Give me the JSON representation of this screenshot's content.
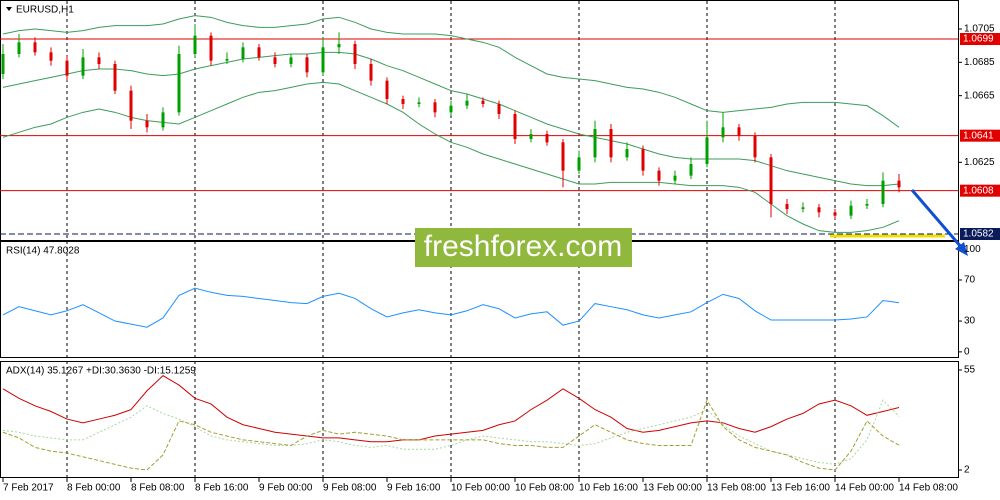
{
  "chart_data": [
    {
      "type": "candlestick",
      "title": "EURUSD,H1",
      "watermark": "freshforex.com",
      "categories": [
        "7 Feb 2017",
        null,
        null,
        null,
        "8 Feb 00:00",
        null,
        null,
        null,
        "8 Feb 08:00",
        null,
        null,
        null,
        "8 Feb 16:00",
        null,
        null,
        null,
        "9 Feb 00:00",
        null,
        null,
        null,
        "9 Feb 08:00",
        null,
        null,
        null,
        "9 Feb 16:00",
        null,
        null,
        null,
        "10 Feb 00:00",
        null,
        null,
        null,
        "10 Feb 08:00",
        null,
        null,
        null,
        "10 Feb 16:00",
        null,
        null,
        null,
        "13 Feb 00:00",
        null,
        null,
        null,
        "13 Feb 08:00",
        null,
        null,
        null,
        "13 Feb 16:00",
        null,
        null,
        null,
        "14 Feb 00:00",
        null,
        null,
        null,
        "14 Feb 08:00"
      ],
      "open": [
        1.0678,
        1.069,
        1.0697,
        1.0691,
        1.0686,
        1.0677,
        1.0688,
        1.0684,
        1.0668,
        1.065,
        1.0646,
        1.0655,
        1.069,
        1.0701,
        1.0686,
        1.0687,
        1.0694,
        1.0688,
        1.0684,
        1.0688,
        1.0679,
        1.0694,
        1.0696,
        1.0684,
        1.0674,
        1.0663,
        1.066,
        1.0661,
        1.0655,
        1.0659,
        1.0662,
        1.066,
        1.0654,
        1.0639,
        1.0642,
        1.0637,
        1.062,
        1.0628,
        1.0645,
        1.0628,
        1.0633,
        1.062,
        1.0614,
        1.0617,
        1.0624,
        1.064,
        1.0646,
        1.0641,
        1.0628,
        1.06,
        1.0597,
        1.0598,
        1.0595,
        1.0593,
        1.0599,
        1.06,
        1.0614
      ],
      "high": [
        1.0696,
        1.0702,
        1.07,
        1.0694,
        1.0689,
        1.0693,
        1.0691,
        1.0686,
        1.0671,
        1.0654,
        1.0658,
        1.0695,
        1.0708,
        1.0703,
        1.0691,
        1.0697,
        1.0696,
        1.0691,
        1.069,
        1.069,
        1.07,
        1.0703,
        1.0698,
        1.0687,
        1.0676,
        1.0665,
        1.0664,
        1.0663,
        1.0662,
        1.0666,
        1.0664,
        1.0662,
        1.0656,
        1.0645,
        1.0644,
        1.0639,
        1.0632,
        1.065,
        1.0648,
        1.0637,
        1.0635,
        1.0622,
        1.062,
        1.0628,
        1.065,
        1.0655,
        1.0648,
        1.0643,
        1.063,
        1.0603,
        1.0601,
        1.06,
        1.0597,
        1.0602,
        1.0603,
        1.0619,
        1.0618
      ],
      "low": [
        1.0675,
        1.0688,
        1.0689,
        1.0683,
        1.0674,
        1.0675,
        1.0681,
        1.0666,
        1.0645,
        1.0643,
        1.0644,
        1.0653,
        1.0688,
        1.0683,
        1.0684,
        1.0685,
        1.0686,
        1.0682,
        1.0682,
        1.0676,
        1.0677,
        1.069,
        1.0681,
        1.0671,
        1.066,
        1.0657,
        1.0658,
        1.0652,
        1.0653,
        1.0657,
        1.0658,
        1.0651,
        1.0636,
        1.0637,
        1.0635,
        1.061,
        1.0618,
        1.0625,
        1.0625,
        1.0626,
        1.0617,
        1.0611,
        1.0612,
        1.0615,
        1.0622,
        1.0637,
        1.0638,
        1.0625,
        1.0592,
        1.0594,
        1.0595,
        1.0592,
        1.0591,
        1.0591,
        1.0597,
        1.0598,
        1.0607
      ],
      "close": [
        1.069,
        1.0697,
        1.0691,
        1.0686,
        1.0677,
        1.0688,
        1.0684,
        1.0668,
        1.065,
        1.0646,
        1.0655,
        1.069,
        1.0701,
        1.0686,
        1.0687,
        1.0694,
        1.0688,
        1.0684,
        1.0688,
        1.0679,
        1.0694,
        1.0696,
        1.0684,
        1.0674,
        1.0663,
        1.066,
        1.0661,
        1.0655,
        1.0659,
        1.0662,
        1.066,
        1.0654,
        1.0639,
        1.0642,
        1.0637,
        1.062,
        1.0628,
        1.0645,
        1.0628,
        1.0633,
        1.062,
        1.0614,
        1.0617,
        1.0624,
        1.064,
        1.0646,
        1.0641,
        1.0628,
        1.06,
        1.0597,
        1.0598,
        1.0595,
        1.0593,
        1.0599,
        1.06,
        1.0614,
        1.061
      ],
      "up_color": "#00a000",
      "down_color": "#e00000",
      "series": [
        {
          "color": "#3c9c5c",
          "values": [
            1.0702,
            1.0704,
            1.0705,
            1.0704,
            1.0703,
            1.0704,
            1.0706,
            1.0707,
            1.0707,
            1.0707,
            1.0708,
            1.0711,
            1.0713,
            1.0712,
            1.0709,
            1.0707,
            1.0706,
            1.0706,
            1.0707,
            1.0708,
            1.0711,
            1.0712,
            1.0709,
            1.0705,
            1.0703,
            1.0702,
            1.0702,
            1.0702,
            1.0701,
            1.0699,
            1.0697,
            1.0694,
            1.0688,
            1.0683,
            1.0678,
            1.0676,
            1.0675,
            1.0674,
            1.0672,
            1.067,
            1.0669,
            1.0667,
            1.0664,
            1.066,
            1.0656,
            1.0655,
            1.0656,
            1.0657,
            1.0658,
            1.066,
            1.0661,
            1.0661,
            1.0661,
            1.066,
            1.0659,
            1.0653,
            1.0646
          ]
        },
        {
          "color": "#3c9c5c",
          "values": [
            1.067,
            1.0672,
            1.0674,
            1.0676,
            1.0678,
            1.068,
            1.0681,
            1.0681,
            1.068,
            1.0678,
            1.0677,
            1.0678,
            1.0681,
            1.0683,
            1.0685,
            1.0687,
            1.0688,
            1.0689,
            1.069,
            1.069,
            1.0691,
            1.0691,
            1.069,
            1.0687,
            1.0683,
            1.068,
            1.0676,
            1.0672,
            1.0668,
            1.0666,
            1.0663,
            1.066,
            1.0656,
            1.0652,
            1.0648,
            1.0645,
            1.0642,
            1.064,
            1.0638,
            1.0636,
            1.0633,
            1.063,
            1.0628,
            1.0627,
            1.0627,
            1.0627,
            1.0627,
            1.0626,
            1.0623,
            1.062,
            1.0618,
            1.0616,
            1.0614,
            1.0612,
            1.0611,
            1.0611,
            1.0612
          ]
        },
        {
          "color": "#3c9c5c",
          "values": [
            1.064,
            1.0643,
            1.0646,
            1.0648,
            1.0652,
            1.0655,
            1.0657,
            1.0655,
            1.0652,
            1.065,
            1.0649,
            1.0648,
            1.0652,
            1.0656,
            1.066,
            1.0664,
            1.0667,
            1.0668,
            1.067,
            1.0672,
            1.0673,
            1.0672,
            1.0668,
            1.0664,
            1.066,
            1.0655,
            1.0648,
            1.0642,
            1.0637,
            1.0634,
            1.063,
            1.0627,
            1.0624,
            1.0621,
            1.0618,
            1.0615,
            1.0612,
            1.0612,
            1.0613,
            1.0613,
            1.0613,
            1.0613,
            1.0612,
            1.0611,
            1.0611,
            1.0611,
            1.061,
            1.0607,
            1.06,
            1.0593,
            1.0588,
            1.0584,
            1.0583,
            1.0583,
            1.0584,
            1.0586,
            1.059
          ]
        }
      ],
      "levels": [
        1.0699,
        1.0641,
        1.0608
      ],
      "levels_color": "#e00000",
      "dashed_level": 1.0582,
      "dashed_level_color": "#0a1a5a",
      "ylim": [
        1.05784,
        1.07212
      ],
      "yticks": [
        1.0705,
        1.0685,
        1.0665,
        1.0625
      ]
    },
    {
      "type": "line",
      "title": "RSI(14) 47.8028",
      "series": [
        {
          "color": "#1e90ff",
          "values": [
            36,
            44,
            40,
            36,
            40,
            46,
            38,
            30,
            27,
            24,
            33,
            55,
            62,
            58,
            55,
            54,
            52,
            50,
            48,
            47,
            54,
            57,
            52,
            42,
            34,
            38,
            41,
            38,
            36,
            40,
            46,
            42,
            33,
            37,
            39,
            26,
            30,
            47,
            44,
            41,
            36,
            33,
            36,
            39,
            48,
            56,
            52,
            40,
            31,
            31,
            31,
            31,
            31,
            32,
            34,
            50,
            47.8028
          ]
        }
      ],
      "ylim": [
        -5,
        106
      ],
      "yticks": [
        0,
        30,
        70,
        100
      ]
    },
    {
      "type": "line",
      "title": "ADX(14) 35.1267 +DI:30.3630 -DI:15.1259",
      "series": [
        {
          "color": "#d00000",
          "values": [
            45,
            40,
            36,
            33,
            29,
            27,
            29,
            31,
            34,
            44,
            52,
            47,
            40,
            37,
            30,
            26,
            24,
            22,
            21,
            20,
            19,
            19,
            18,
            17,
            17,
            18,
            18,
            20,
            21,
            22,
            23,
            26,
            28,
            34,
            39,
            45,
            40,
            34,
            30,
            24,
            22,
            23,
            25,
            27,
            28,
            27,
            24,
            22,
            25,
            29,
            32,
            37,
            39,
            36,
            31,
            33,
            35.1267
          ]
        },
        {
          "color": "#a8d8a0",
          "dash": "2,2",
          "values": [
            23,
            22,
            20,
            19,
            18,
            18,
            22,
            26,
            30,
            36,
            32,
            29,
            25,
            20,
            18,
            17,
            16,
            15,
            15,
            16,
            18,
            17,
            15,
            14,
            15,
            13,
            13,
            13,
            15,
            18,
            20,
            19,
            18,
            17,
            17,
            16,
            15,
            16,
            19,
            22,
            24,
            26,
            28,
            30,
            34,
            26,
            20,
            16,
            12,
            10,
            8,
            6,
            5,
            8,
            18,
            39,
            30.363
          ]
        },
        {
          "color": "#a0a030",
          "dash": "4,2",
          "values": [
            22,
            19,
            14,
            12,
            11,
            9,
            7,
            5,
            3,
            2,
            10,
            28,
            26,
            22,
            20,
            18,
            17,
            16,
            15,
            20,
            23,
            21,
            22,
            21,
            20,
            18,
            18,
            18,
            18,
            18,
            18,
            16,
            15,
            15,
            14,
            14,
            20,
            26,
            22,
            18,
            16,
            15,
            15,
            15,
            39,
            25,
            18,
            14,
            12,
            10,
            6,
            3,
            2,
            12,
            28,
            20,
            15.1259
          ]
        }
      ],
      "ylim": [
        -1.7,
        58.7
      ],
      "yticks": [
        2,
        55
      ]
    }
  ]
}
